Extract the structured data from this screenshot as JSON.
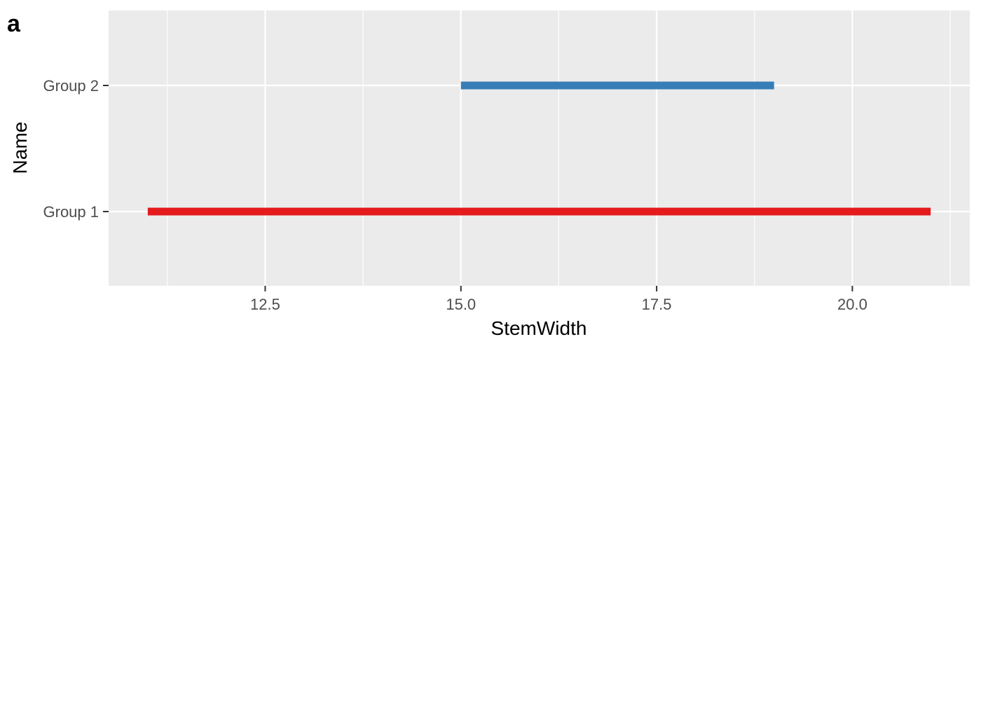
{
  "panel_tag": "a",
  "chart_data": {
    "type": "range-segment",
    "xlabel": "StemWidth",
    "ylabel": "Name",
    "xlim": [
      10.5,
      21.5
    ],
    "x_ticks": [
      12.5,
      15.0,
      17.5,
      20.0
    ],
    "x_tick_labels": [
      "12.5",
      "15.0",
      "17.5",
      "20.0"
    ],
    "categories": [
      "Group 1",
      "Group 2"
    ],
    "segments": [
      {
        "category": "Group 1",
        "x_start": 11.0,
        "x_end": 21.0,
        "color": "#e41a1c"
      },
      {
        "category": "Group 2",
        "x_start": 15.0,
        "x_end": 19.0,
        "color": "#377eb8"
      }
    ],
    "panel_background": "#ebebeb",
    "grid": true,
    "grid_color": "#ffffff",
    "legend": "none"
  }
}
